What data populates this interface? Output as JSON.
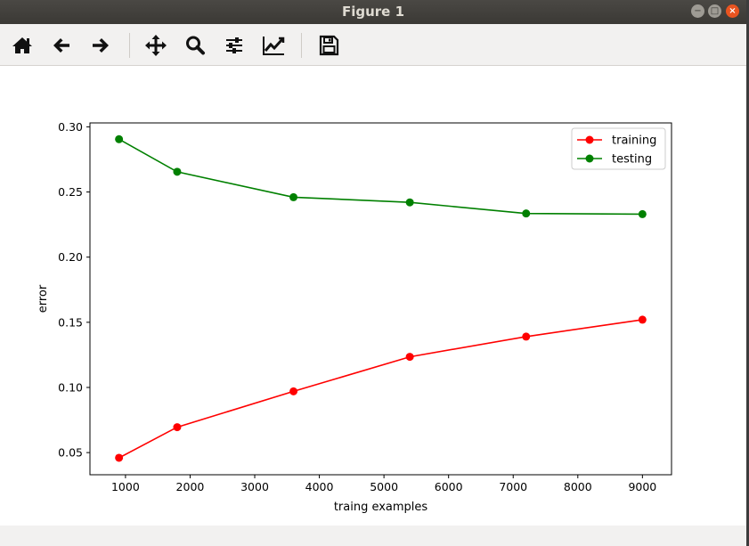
{
  "window": {
    "title": "Figure 1"
  },
  "titlebar_buttons": {
    "minimize": "−",
    "maximize": "□",
    "close": "×"
  },
  "toolbar": {
    "items": [
      {
        "name": "home-icon"
      },
      {
        "name": "back-arrow-icon"
      },
      {
        "name": "forward-arrow-icon"
      },
      {
        "name": "pan-move-icon"
      },
      {
        "name": "zoom-magnifier-icon"
      },
      {
        "name": "subplots-sliders-icon"
      },
      {
        "name": "edit-axes-lines-icon"
      },
      {
        "name": "save-disk-icon"
      }
    ]
  },
  "colors": {
    "training": "#ff0000",
    "testing": "#008000",
    "close_button": "#e95420"
  },
  "chart_data": {
    "type": "line",
    "title": "",
    "xlabel": "traing examples",
    "ylabel": "error",
    "x": [
      900,
      1800,
      3600,
      5400,
      7200,
      9000
    ],
    "series": [
      {
        "name": "training",
        "color": "#ff0000",
        "marker": "o",
        "values": [
          0.046,
          0.0695,
          0.097,
          0.1235,
          0.139,
          0.152
        ]
      },
      {
        "name": "testing",
        "color": "#008000",
        "marker": "o",
        "values": [
          0.2905,
          0.2655,
          0.246,
          0.242,
          0.2335,
          0.233
        ]
      }
    ],
    "xlim": [
      450,
      9450
    ],
    "ylim": [
      0.033,
      0.303
    ],
    "xticks": [
      1000,
      2000,
      3000,
      4000,
      5000,
      6000,
      7000,
      8000,
      9000
    ],
    "xtick_labels": [
      "1000",
      "2000",
      "3000",
      "4000",
      "5000",
      "6000",
      "7000",
      "8000",
      "9000"
    ],
    "yticks": [
      0.05,
      0.1,
      0.15,
      0.2,
      0.25,
      0.3
    ],
    "ytick_labels": [
      "0.05",
      "0.10",
      "0.15",
      "0.20",
      "0.25",
      "0.30"
    ],
    "grid": false,
    "legend": "upper right"
  }
}
